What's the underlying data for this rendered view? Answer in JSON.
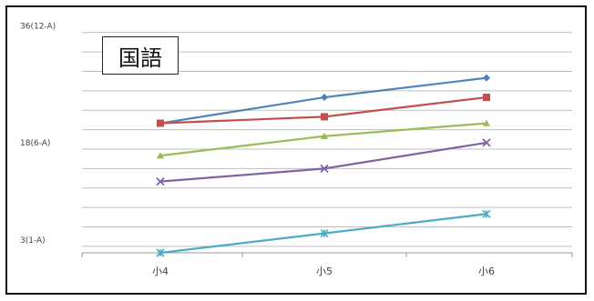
{
  "chart_data": {
    "type": "line",
    "title": "国語",
    "categories": [
      "小4",
      "小5",
      "小6"
    ],
    "y_ticks": [
      {
        "value": 3,
        "label": "3(1-A)"
      },
      {
        "value": 18,
        "label": "18(6-A)"
      },
      {
        "value": 36,
        "label": "36(12-A)"
      }
    ],
    "ylim": [
      1,
      37.5
    ],
    "grid": true,
    "legend": "none",
    "series": [
      {
        "color": "#4f81bd",
        "marker": "diamond",
        "values": [
          21,
          25,
          28
        ]
      },
      {
        "color": "#c0504d",
        "marker": "square",
        "values": [
          21,
          22,
          25
        ]
      },
      {
        "color": "#9bbb59",
        "marker": "triangle",
        "values": [
          16,
          19,
          21
        ]
      },
      {
        "color": "#8064a2",
        "marker": "x",
        "values": [
          12,
          14,
          18
        ]
      },
      {
        "color": "#4bacc6",
        "marker": "star",
        "values": [
          1,
          4,
          7
        ]
      }
    ]
  }
}
